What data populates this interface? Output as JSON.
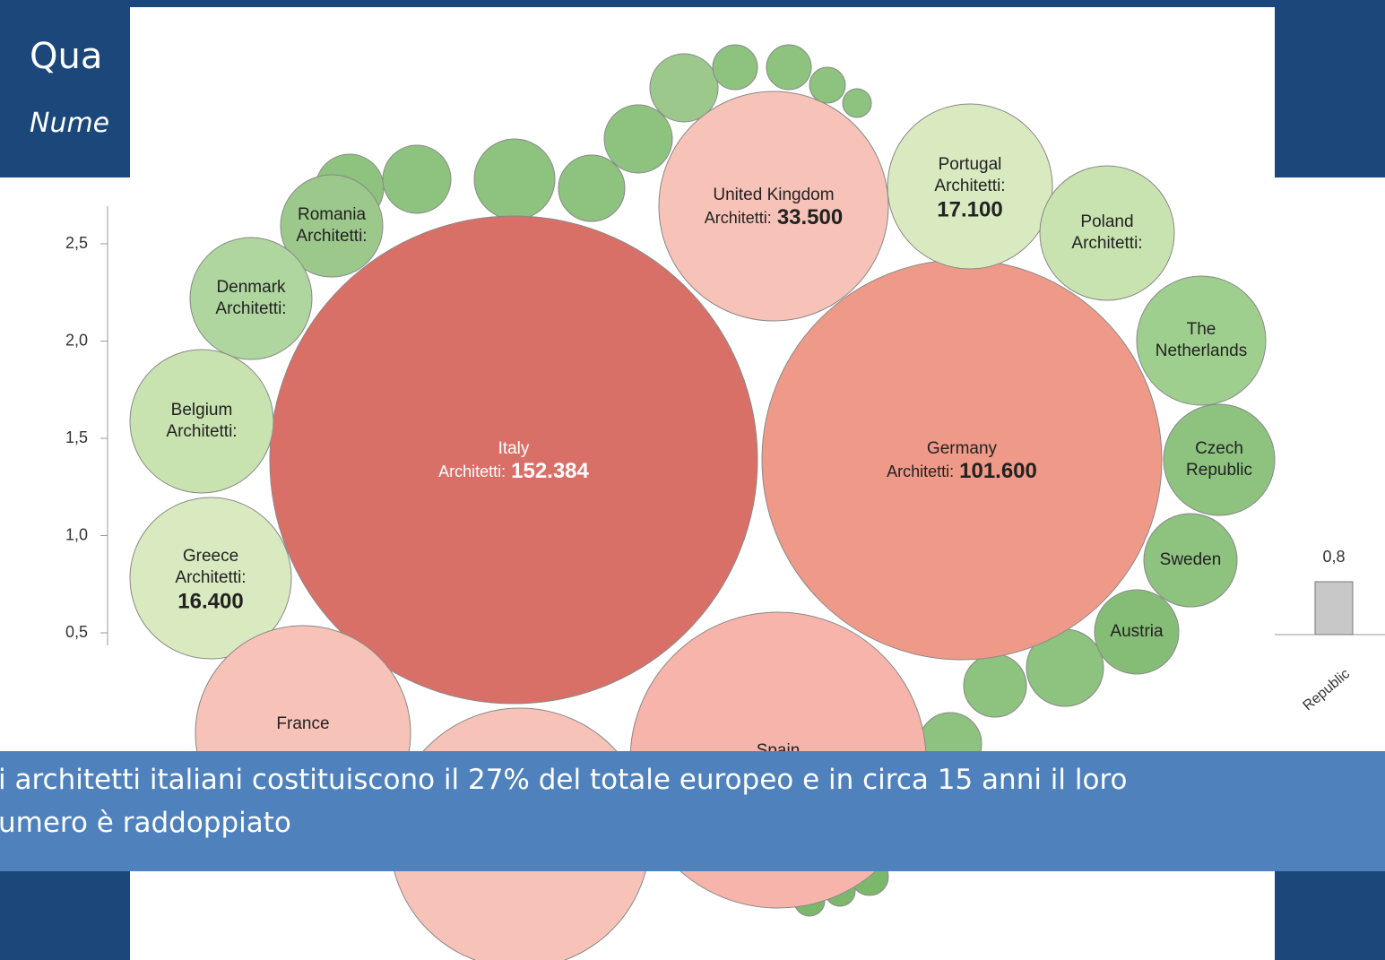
{
  "header": {
    "title": "Qua",
    "subtitle": "Nume"
  },
  "background_chart": {
    "yticks": [
      "2,5",
      "2,0",
      "1,5",
      "1,0",
      "0,5"
    ],
    "bar_label": "0,8",
    "x_label": "Republic"
  },
  "bubbles": [
    {
      "lines": [
        "Italy"
      ],
      "label": "Architetti:",
      "value": "152.384"
    },
    {
      "lines": [
        "Germany"
      ],
      "label": "Architetti:",
      "value": "101.600"
    },
    {
      "lines": [
        "United Kingdom"
      ],
      "label": "Architetti:",
      "value": "33.500"
    },
    {
      "lines": [
        "Portugal",
        "Architetti:"
      ],
      "value": "17.100"
    },
    {
      "lines": [
        "Poland",
        "Architetti:"
      ]
    },
    {
      "lines": [
        "The",
        "Netherlands"
      ]
    },
    {
      "lines": [
        "Czech",
        "Republic"
      ]
    },
    {
      "lines": [
        "Sweden"
      ]
    },
    {
      "lines": [
        "Austria"
      ]
    },
    {
      "lines": [
        "Romania",
        "Architetti:"
      ]
    },
    {
      "lines": [
        "Denmark",
        "Architetti:"
      ]
    },
    {
      "lines": [
        "Belgium",
        "Architetti:"
      ]
    },
    {
      "lines": [
        "Greece",
        "Architetti:"
      ],
      "value": "16.400"
    },
    {
      "lines": [
        "France"
      ]
    },
    {
      "lines": [
        "Spain"
      ]
    }
  ],
  "caption": {
    "lines": [
      "i architetti italiani costituiscono il 27% del totale europeo e in circa 15 anni il loro",
      "umero è raddoppiato"
    ]
  }
}
